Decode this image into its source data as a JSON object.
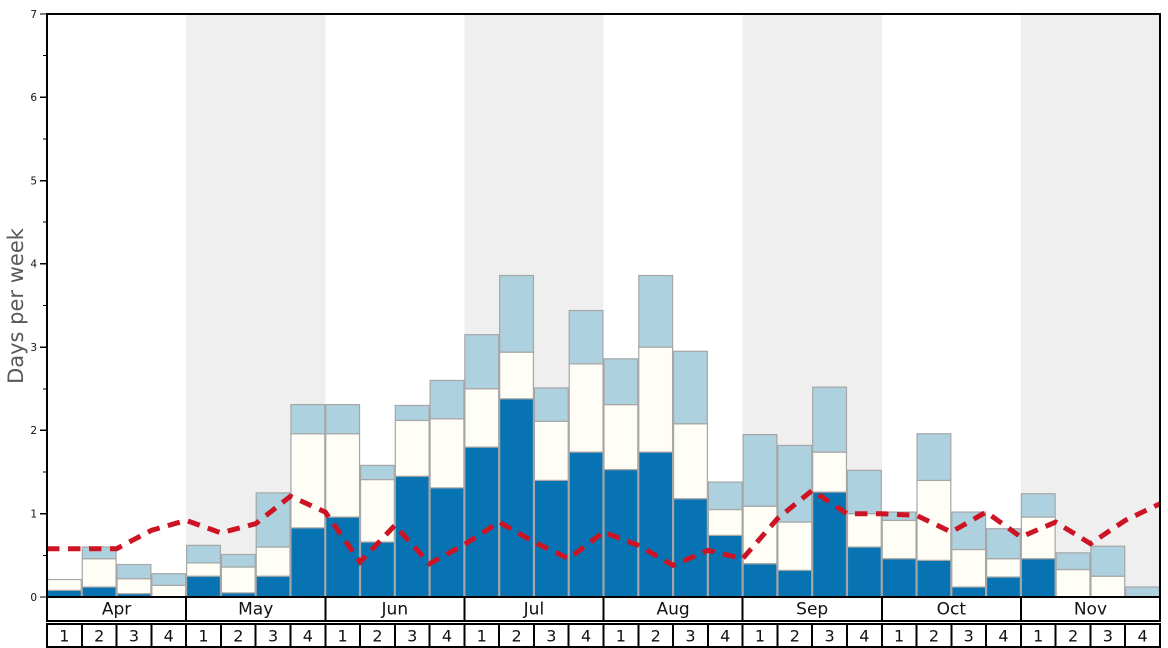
{
  "chart_data": {
    "type": "bar",
    "title": "",
    "ylabel": "Days per week",
    "ylim": [
      0,
      7
    ],
    "yticks": [
      "0",
      "1",
      "2",
      "3",
      "4",
      "5",
      "6",
      "7"
    ],
    "grid": false,
    "legend": "none",
    "months": [
      {
        "label": "Apr",
        "shaded": false
      },
      {
        "label": "May",
        "shaded": true
      },
      {
        "label": "Jun",
        "shaded": false
      },
      {
        "label": "Jul",
        "shaded": true
      },
      {
        "label": "Aug",
        "shaded": false
      },
      {
        "label": "Sep",
        "shaded": true
      },
      {
        "label": "Oct",
        "shaded": false
      },
      {
        "label": "Nov",
        "shaded": true
      }
    ],
    "week_labels": [
      "1",
      "2",
      "3",
      "4"
    ],
    "weeks_per_month": 4,
    "series": [
      {
        "name": "dark-blue-days",
        "color": "#0873b2",
        "cumulative_tops": [
          0.08,
          0.12,
          0.04,
          0.0,
          0.25,
          0.05,
          0.25,
          0.83,
          0.96,
          0.66,
          1.45,
          1.31,
          1.8,
          2.38,
          1.4,
          1.74,
          1.53,
          1.74,
          1.18,
          0.74,
          0.4,
          0.32,
          1.26,
          0.6,
          0.46,
          0.44,
          0.12,
          0.24,
          0.46,
          0.0,
          0.0,
          0.0
        ]
      },
      {
        "name": "white-days",
        "color": "#fffef6",
        "cumulative_tops": [
          0.21,
          0.46,
          0.22,
          0.14,
          0.41,
          0.36,
          0.6,
          1.96,
          1.96,
          1.41,
          2.12,
          2.14,
          2.5,
          2.94,
          2.11,
          2.8,
          2.31,
          3.0,
          2.08,
          1.05,
          1.09,
          0.9,
          1.74,
          1.0,
          0.92,
          1.4,
          0.57,
          0.46,
          0.96,
          0.33,
          0.25,
          0.0
        ]
      },
      {
        "name": "light-blue-days",
        "color": "#aed1df",
        "cumulative_tops": [
          0.21,
          0.6,
          0.39,
          0.28,
          0.62,
          0.51,
          1.25,
          2.31,
          2.31,
          1.58,
          2.3,
          2.6,
          3.15,
          3.86,
          2.51,
          3.44,
          2.86,
          3.86,
          2.95,
          1.38,
          1.95,
          1.82,
          2.52,
          1.52,
          1.02,
          1.96,
          1.02,
          0.82,
          1.24,
          0.53,
          0.61,
          0.12
        ]
      }
    ],
    "average_line": {
      "name": "red-dashed-line",
      "color": "#cd1425",
      "values_at_week_boundaries": [
        0.58,
        0.58,
        0.58,
        0.8,
        0.92,
        0.77,
        0.88,
        1.21,
        1.02,
        0.42,
        0.86,
        0.4,
        0.63,
        0.9,
        0.66,
        0.46,
        0.78,
        0.62,
        0.38,
        0.56,
        0.46,
        0.94,
        1.28,
        1.0,
        1.0,
        0.98,
        0.78,
        1.02,
        0.72,
        0.9,
        0.64,
        0.92,
        1.12
      ]
    }
  },
  "colors": {
    "month_band": "#efefef",
    "segment_border": "#a6a6a6",
    "spine": "#000000",
    "tick_text": "#111111",
    "footer_border": "#000000",
    "footer_bg": "#ffffff",
    "footer_text": "#111111"
  }
}
